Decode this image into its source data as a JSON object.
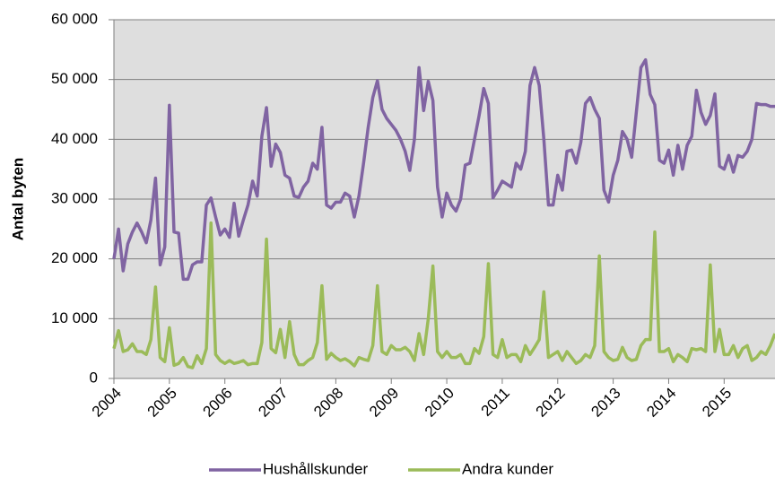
{
  "chart_data": {
    "type": "line",
    "y_label": "Antal byten",
    "categories": [
      "2004",
      null,
      null,
      null,
      null,
      null,
      null,
      null,
      null,
      null,
      null,
      null,
      "2005",
      null,
      null,
      null,
      null,
      null,
      null,
      null,
      null,
      null,
      null,
      null,
      "2006",
      null,
      null,
      null,
      null,
      null,
      null,
      null,
      null,
      null,
      null,
      null,
      "2007",
      null,
      null,
      null,
      null,
      null,
      null,
      null,
      null,
      null,
      null,
      null,
      "2008",
      null,
      null,
      null,
      null,
      null,
      null,
      null,
      null,
      null,
      null,
      null,
      "2009",
      null,
      null,
      null,
      null,
      null,
      null,
      null,
      null,
      null,
      null,
      null,
      "2010",
      null,
      null,
      null,
      null,
      null,
      null,
      null,
      null,
      null,
      null,
      null,
      "2011",
      null,
      null,
      null,
      null,
      null,
      null,
      null,
      null,
      null,
      null,
      null,
      "2012",
      null,
      null,
      null,
      null,
      null,
      null,
      null,
      null,
      null,
      null,
      null,
      "2013",
      null,
      null,
      null,
      null,
      null,
      null,
      null,
      null,
      null,
      null,
      null,
      "2014",
      null,
      null,
      null,
      null,
      null,
      null,
      null,
      null,
      null,
      null,
      null,
      "2015",
      null,
      null,
      null,
      null,
      null,
      null,
      null,
      null,
      null,
      null,
      null
    ],
    "series": [
      {
        "name": "Hushållskunder",
        "color": "#8064a2",
        "values": [
          20000,
          25000,
          18000,
          22500,
          24500,
          26000,
          24500,
          22700,
          26500,
          33500,
          19000,
          22000,
          45700,
          24500,
          24300,
          16600,
          16600,
          19000,
          19500,
          19500,
          29000,
          30200,
          27000,
          24000,
          25000,
          23600,
          29300,
          23800,
          26500,
          29000,
          33000,
          30500,
          40500,
          45300,
          35500,
          39200,
          37800,
          34000,
          33500,
          30500,
          30300,
          32000,
          33000,
          36000,
          35000,
          42000,
          29000,
          28500,
          29500,
          29500,
          31000,
          30500,
          27000,
          30500,
          36000,
          42000,
          47000,
          49800,
          45000,
          43500,
          42500,
          41500,
          40000,
          38000,
          34800,
          40000,
          52000,
          44800,
          49700,
          46500,
          32000,
          27000,
          31000,
          29000,
          28000,
          30000,
          35700,
          36000,
          40000,
          44000,
          48500,
          46000,
          30200,
          31500,
          33000,
          32500,
          32000,
          36000,
          35000,
          38000,
          49000,
          52000,
          49000,
          40000,
          29000,
          29000,
          34000,
          31500,
          38000,
          38200,
          36000,
          39500,
          46000,
          47000,
          45000,
          43500,
          31500,
          29500,
          34000,
          36500,
          41300,
          40000,
          37000,
          44500,
          52000,
          53300,
          47500,
          45800,
          36500,
          36000,
          38200,
          34000,
          39000,
          35000,
          39000,
          40500,
          48200,
          44500,
          42500,
          44000,
          47600,
          35500,
          35000,
          37300,
          34500,
          37300,
          37000,
          38000,
          40000,
          46000,
          45800,
          45800,
          45500,
          45500
        ]
      },
      {
        "name": "Andra kunder",
        "color": "#9bbb59",
        "values": [
          5000,
          8000,
          4500,
          4800,
          5800,
          4500,
          4500,
          4000,
          6500,
          15300,
          3500,
          2800,
          8500,
          2200,
          2500,
          3500,
          2000,
          1800,
          3800,
          2500,
          5000,
          26000,
          4000,
          3000,
          2500,
          3000,
          2500,
          2700,
          3000,
          2300,
          2500,
          2500,
          6000,
          23300,
          5000,
          4300,
          8200,
          3500,
          9500,
          4000,
          2300,
          2300,
          3000,
          3500,
          6000,
          15500,
          3200,
          4200,
          3500,
          3000,
          3300,
          2800,
          2100,
          3500,
          3200,
          3000,
          5500,
          15500,
          4500,
          4000,
          5500,
          4800,
          4800,
          5200,
          4500,
          3000,
          7500,
          4000,
          10000,
          18800,
          4500,
          3500,
          4500,
          3500,
          3500,
          4000,
          2500,
          2500,
          5000,
          4200,
          7000,
          19200,
          4000,
          3500,
          6500,
          3500,
          4000,
          4000,
          2800,
          5500,
          4000,
          5200,
          6500,
          14500,
          3500,
          4000,
          4500,
          3000,
          4500,
          3500,
          2500,
          3000,
          4000,
          3500,
          5500,
          20500,
          4500,
          3500,
          3000,
          3200,
          5200,
          3500,
          3000,
          3200,
          5500,
          6500,
          6500,
          24500,
          4500,
          4500,
          5000,
          2800,
          4000,
          3500,
          2800,
          5000,
          4800,
          5000,
          4500,
          19000,
          4500,
          8200,
          4000,
          4000,
          5500,
          3500,
          5000,
          5500,
          3000,
          3500,
          4500,
          4000,
          5500,
          7500
        ]
      }
    ],
    "ylim": [
      0,
      60000
    ],
    "yticks": [
      0,
      {
        "value": 10000,
        "label": "10 000"
      },
      {
        "value": 20000,
        "label": "20 000"
      },
      {
        "value": 30000,
        "label": "30 000"
      },
      {
        "value": 40000,
        "label": "40 000"
      },
      {
        "value": 50000,
        "label": "50 000"
      },
      {
        "value": 60000,
        "label": "60 000"
      }
    ],
    "grid": true,
    "legend": "bottom",
    "background": "#dedede"
  }
}
